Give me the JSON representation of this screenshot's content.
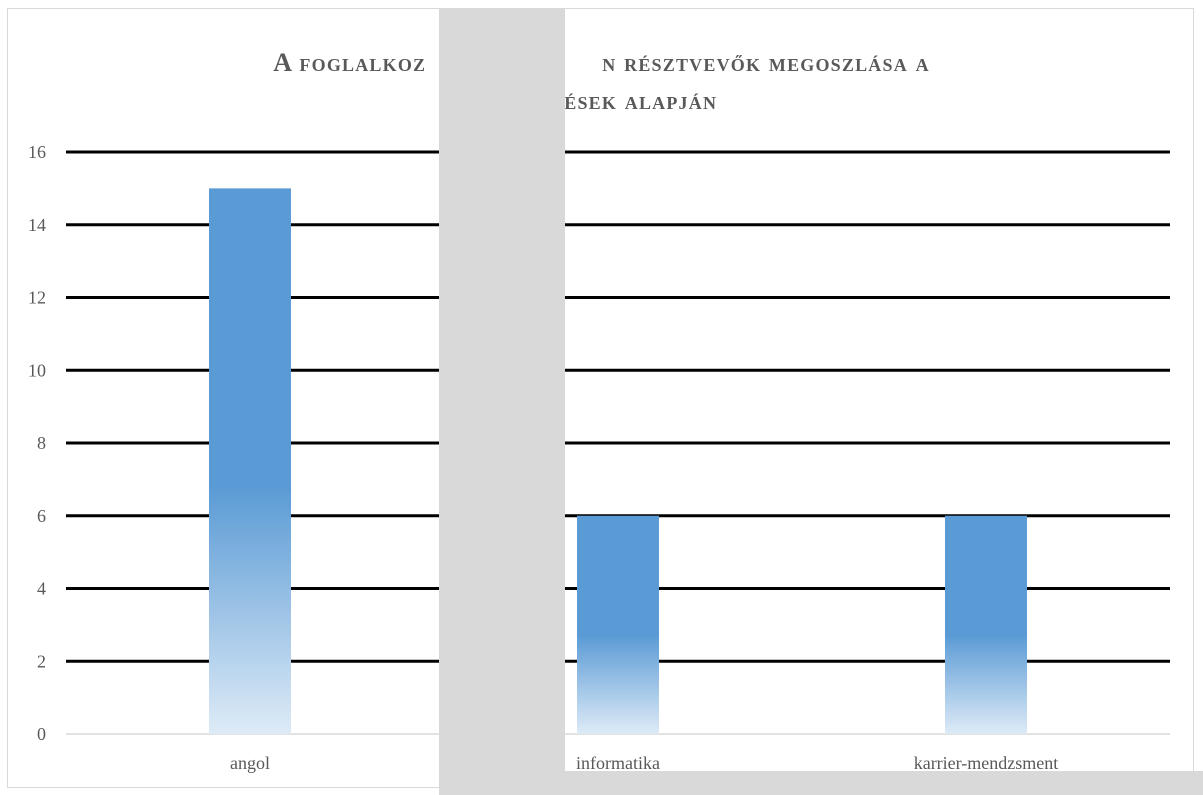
{
  "chart_data": {
    "type": "bar",
    "title_lines": [
      "A foglalkozáson résztvevők megoszlása a",
      "képzések alapján"
    ],
    "title_visible_lines": [
      "A foglalkoz",
      "n résztvevők megoszlása a",
      "ezések alapján"
    ],
    "categories": [
      "angol",
      "informatika",
      "karrier-mendzsment"
    ],
    "values": [
      15,
      6,
      6
    ],
    "ylim": [
      0,
      16
    ],
    "yticks": [
      "0",
      "2",
      "4",
      "6",
      "8",
      "10",
      "12",
      "14",
      "16"
    ],
    "xlabel": "",
    "ylabel": "",
    "grid": true,
    "legend": "none",
    "colors": {
      "bar_top": "#5b9bd5",
      "bar_bottom": "#deebf7",
      "grid": "#000000",
      "text": "#595959"
    }
  }
}
